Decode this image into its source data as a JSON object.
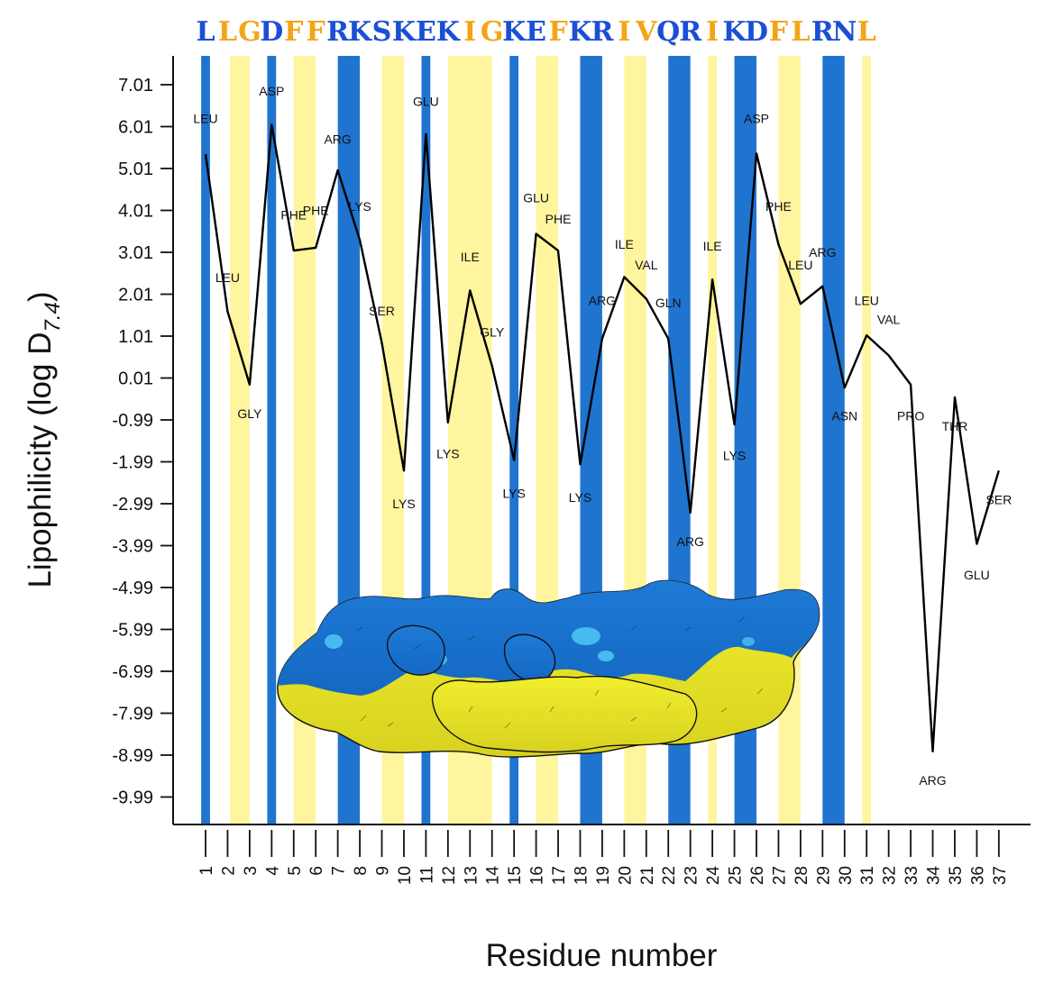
{
  "chart_data": {
    "type": "line",
    "sequence": "LLGDFFRKSKEKIGKEFKRIVQRIKDFLRNL",
    "sequence_colors": {
      "hydrophilic": "#1a4fd6",
      "hydrophobic": "#f2a516"
    },
    "xlabel": "Residue number",
    "ylabel": "Lipophilicity (log D",
    "ylabel_sub": "7.4",
    "ylabel_close": ")",
    "yticks": [
      "7.01",
      "6.01",
      "5.01",
      "4.01",
      "3.01",
      "2.01",
      "1.01",
      "0.01",
      "-0.99",
      "-1.99",
      "-2.99",
      "-3.99",
      "-4.99",
      "-5.99",
      "-6.99",
      "-7.99",
      "-8.99",
      "-9.99"
    ],
    "ylim": [
      -10.6,
      7.5
    ],
    "xlim": [
      0.5,
      37.5
    ],
    "x": [
      1,
      2,
      3,
      4,
      5,
      6,
      7,
      8,
      9,
      10,
      11,
      12,
      13,
      14,
      15,
      16,
      17,
      18,
      19,
      20,
      21,
      22,
      23,
      24,
      25,
      26,
      27,
      28,
      29,
      30,
      31,
      32,
      33,
      34,
      35,
      36,
      37
    ],
    "y": [
      5.35,
      1.6,
      -0.15,
      6.05,
      3.05,
      3.12,
      4.97,
      3.3,
      0.85,
      -2.2,
      5.83,
      -1.05,
      2.1,
      0.3,
      -1.95,
      3.45,
      3.05,
      -2.05,
      0.95,
      2.42,
      1.9,
      0.95,
      -3.2,
      2.36,
      -1.1,
      5.37,
      3.2,
      1.78,
      2.2,
      -0.22,
      1.03,
      0.55,
      -0.15,
      -8.9,
      -0.45,
      -3.95,
      -2.2
    ],
    "residue_labels": [
      "LEU",
      "LEU",
      "GLY",
      "ASP",
      "PHE",
      "PHE",
      "ARG",
      "LYS",
      "SER",
      "LYS",
      "GLU",
      "LYS",
      "ILE",
      "GLY",
      "LYS",
      "GLU",
      "PHE",
      "LYS",
      "ARG",
      "ILE",
      "VAL",
      "GLN",
      "ARG",
      "ILE",
      "LYS",
      "ASP",
      "PHE",
      "LEU",
      "ARG",
      "ASN",
      "LEU",
      "VAL",
      "PRO",
      "ARG",
      "THR",
      "GLU",
      "SER"
    ],
    "residue_label_y": [
      6.1,
      2.3,
      -0.95,
      6.75,
      3.8,
      3.9,
      5.6,
      4.0,
      1.5,
      -3.1,
      6.5,
      -1.9,
      2.8,
      1.0,
      -2.85,
      4.2,
      3.7,
      -2.95,
      1.75,
      3.1,
      2.6,
      1.7,
      -4.0,
      3.05,
      -1.95,
      6.1,
      4.0,
      2.6,
      2.9,
      -1.0,
      1.75,
      1.3,
      -1.0,
      -9.7,
      -1.25,
      -4.8,
      -3.0
    ],
    "residue_label_dx": [
      0,
      0,
      0,
      0,
      0,
      0,
      0,
      0,
      0,
      0,
      0,
      0,
      0,
      0,
      0,
      0,
      0,
      0,
      0,
      0,
      0,
      0,
      0,
      0,
      0,
      0,
      0,
      0,
      0,
      0,
      0,
      0,
      0,
      0,
      0,
      0,
      0
    ],
    "bands": [
      {
        "from": 0.8,
        "to": 1.2,
        "kind": "hydrophilic"
      },
      {
        "from": 2.1,
        "to": 3.0,
        "kind": "hydrophobic"
      },
      {
        "from": 3.8,
        "to": 4.2,
        "kind": "hydrophilic"
      },
      {
        "from": 5.0,
        "to": 6.0,
        "kind": "hydrophobic"
      },
      {
        "from": 7.0,
        "to": 8.0,
        "kind": "hydrophilic"
      },
      {
        "from": 9.0,
        "to": 10.0,
        "kind": "hydrophobic"
      },
      {
        "from": 10.8,
        "to": 11.2,
        "kind": "hydrophilic"
      },
      {
        "from": 12.0,
        "to": 14.0,
        "kind": "hydrophobic"
      },
      {
        "from": 14.8,
        "to": 15.2,
        "kind": "hydrophilic"
      },
      {
        "from": 16.0,
        "to": 17.0,
        "kind": "hydrophobic"
      },
      {
        "from": 18.0,
        "to": 19.0,
        "kind": "hydrophilic"
      },
      {
        "from": 20.0,
        "to": 21.0,
        "kind": "hydrophobic"
      },
      {
        "from": 22.0,
        "to": 23.0,
        "kind": "hydrophilic"
      },
      {
        "from": 23.8,
        "to": 24.2,
        "kind": "hydrophobic"
      },
      {
        "from": 25.0,
        "to": 26.0,
        "kind": "hydrophilic"
      },
      {
        "from": 27.0,
        "to": 28.0,
        "kind": "hydrophobic"
      },
      {
        "from": 29.0,
        "to": 30.0,
        "kind": "hydrophilic"
      },
      {
        "from": 30.8,
        "to": 31.2,
        "kind": "hydrophobic"
      }
    ],
    "band_colors": {
      "hydrophilic": "#1f74cf",
      "hydrophobic": "#fff59e"
    },
    "surface_colors": {
      "top": "#1b79d4",
      "highlight": "#52c4f5",
      "bottom": "#ecea2a",
      "shade": "#c9c31f"
    },
    "line_color": "#000000"
  }
}
